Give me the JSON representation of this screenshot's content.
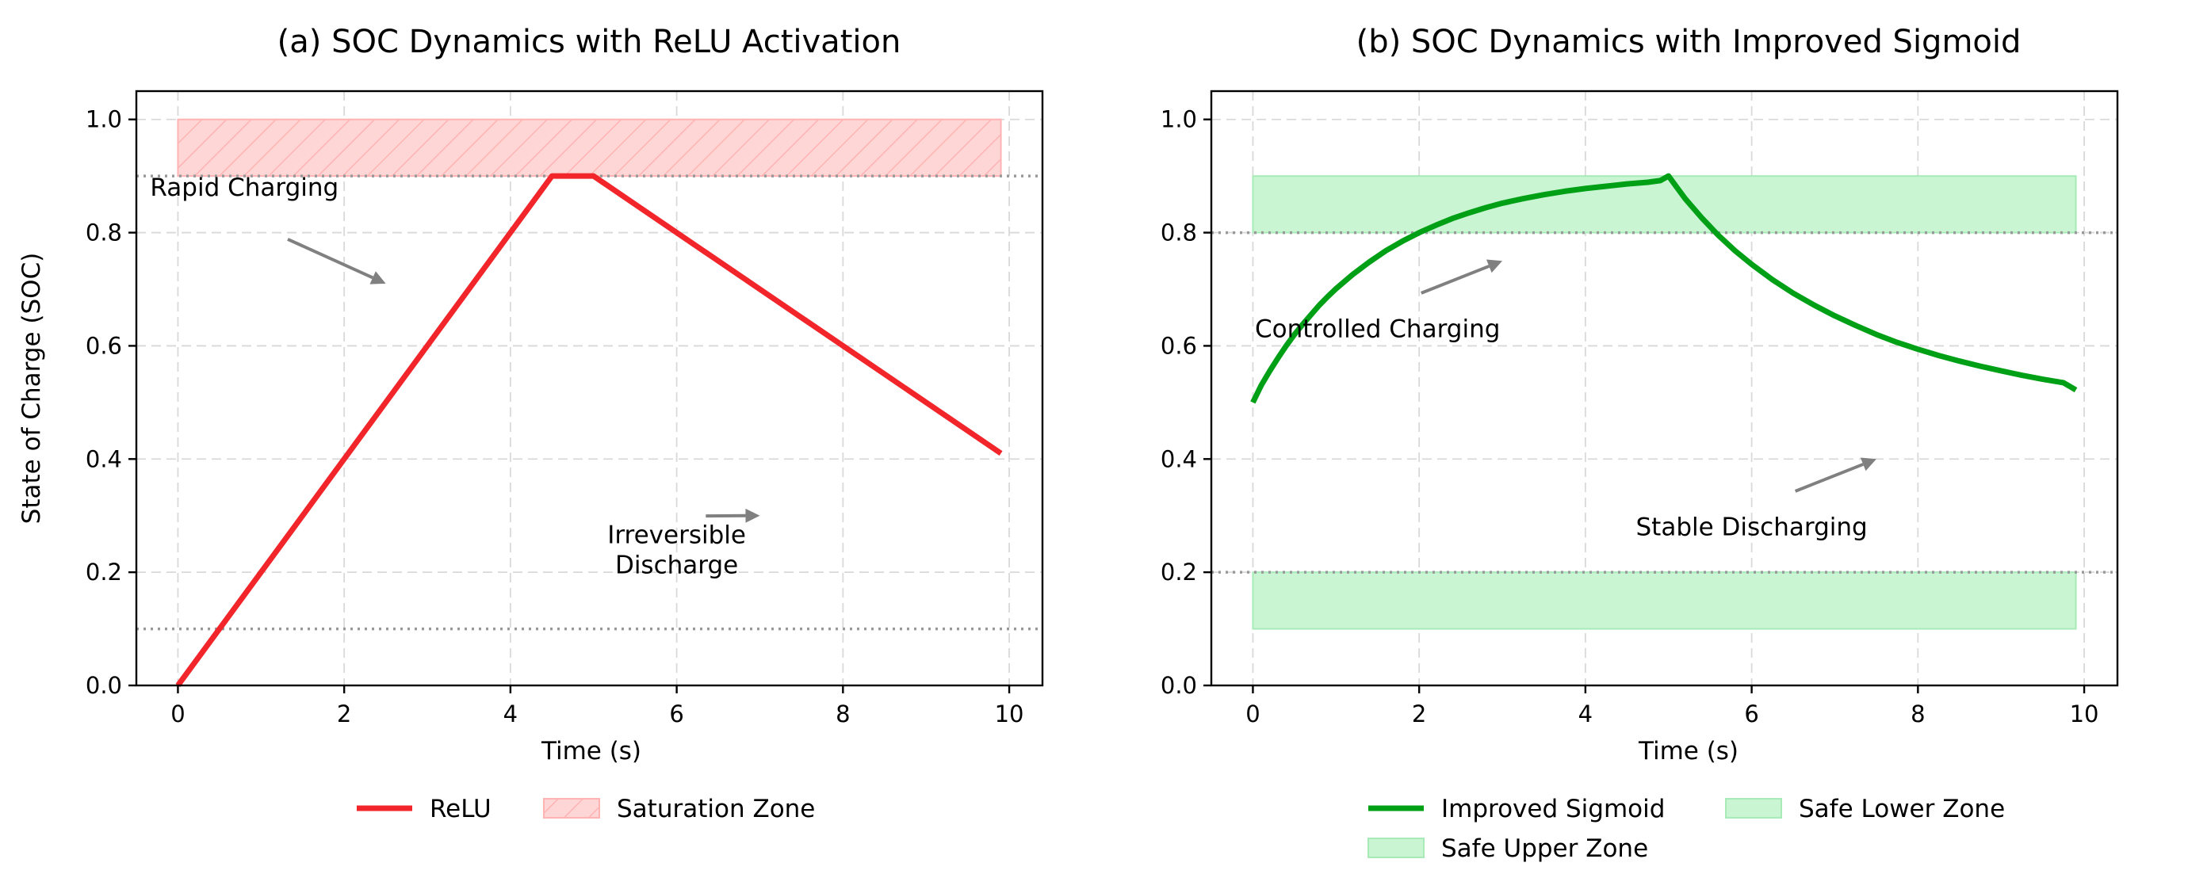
{
  "chart_data": [
    {
      "id": "a",
      "type": "line",
      "title": "(a) SOC Dynamics with ReLU Activation",
      "xlabel": "Time (s)",
      "ylabel": "State of Charge (SOC)",
      "xlim": [
        -0.5,
        10.4
      ],
      "ylim": [
        0.0,
        1.05
      ],
      "xticks": [
        0,
        2,
        4,
        6,
        8,
        10
      ],
      "yticks": [
        0.0,
        0.2,
        0.4,
        0.6,
        0.8,
        1.0
      ],
      "xtick_labels": [
        "0",
        "2",
        "4",
        "6",
        "8",
        "10"
      ],
      "ytick_labels": [
        "0.0",
        "0.2",
        "0.4",
        "0.6",
        "0.8",
        "1.0"
      ],
      "grid": true,
      "series": [
        {
          "name": "ReLU",
          "color": "#f2252a",
          "x": [
            0,
            4.5,
            5.0,
            9.9
          ],
          "y": [
            0.0,
            0.9,
            0.9,
            0.41
          ]
        }
      ],
      "regions": [
        {
          "name": "Saturation Zone",
          "x": [
            0,
            9.9
          ],
          "y": [
            0.9,
            1.0
          ],
          "fill": "#ffd6d6",
          "edge": "#ffb3b3",
          "hatch": true
        }
      ],
      "hlines": [
        {
          "y": 0.9,
          "color": "#999999"
        },
        {
          "y": 0.1,
          "color": "#999999"
        }
      ],
      "annotations": [
        {
          "lines": [
            "Rapid Charging"
          ],
          "text_at": [
            0.8,
            0.865
          ],
          "arrow_to": [
            2.5,
            0.71
          ]
        },
        {
          "lines": [
            "Irreversible",
            "Discharge"
          ],
          "text_at": [
            6.0,
            0.225
          ],
          "arrow_to": [
            7.0,
            0.3
          ]
        }
      ],
      "legend": [
        {
          "label": "ReLU",
          "kind": "line",
          "color": "#f2252a"
        },
        {
          "label": "Saturation Zone",
          "kind": "patch",
          "color": "#ffd6d6",
          "hatch": true
        }
      ]
    },
    {
      "id": "b",
      "type": "line",
      "title": "(b) SOC Dynamics with Improved Sigmoid",
      "xlabel": "Time (s)",
      "ylabel": "",
      "xlim": [
        -0.5,
        10.4
      ],
      "ylim": [
        0.0,
        1.05
      ],
      "xticks": [
        0,
        2,
        4,
        6,
        8,
        10
      ],
      "yticks": [
        0.0,
        0.2,
        0.4,
        0.6,
        0.8,
        1.0
      ],
      "xtick_labels": [
        "0",
        "2",
        "4",
        "6",
        "8",
        "10"
      ],
      "ytick_labels": [
        "0.0",
        "0.2",
        "0.4",
        "0.6",
        "0.8",
        "1.0"
      ],
      "grid": true,
      "series": [
        {
          "name": "Improved Sigmoid",
          "color": "#00a016",
          "x": [
            0.0,
            0.1,
            0.2,
            0.3,
            0.4,
            0.5,
            0.6,
            0.7,
            0.8,
            0.9,
            1.0,
            1.2,
            1.4,
            1.6,
            1.8,
            2.0,
            2.2,
            2.4,
            2.6,
            2.8,
            3.0,
            3.25,
            3.5,
            3.75,
            4.0,
            4.25,
            4.5,
            4.75,
            4.9,
            5.0,
            5.1,
            5.2,
            5.4,
            5.6,
            5.8,
            6.0,
            6.25,
            6.5,
            6.75,
            7.0,
            7.25,
            7.5,
            7.75,
            8.0,
            8.25,
            8.5,
            8.75,
            9.0,
            9.25,
            9.5,
            9.75,
            9.9
          ],
          "y": [
            0.5,
            0.53,
            0.555,
            0.578,
            0.6,
            0.62,
            0.638,
            0.655,
            0.672,
            0.687,
            0.701,
            0.726,
            0.748,
            0.768,
            0.785,
            0.8,
            0.813,
            0.825,
            0.835,
            0.844,
            0.852,
            0.86,
            0.867,
            0.873,
            0.878,
            0.882,
            0.886,
            0.889,
            0.892,
            0.9,
            0.88,
            0.86,
            0.826,
            0.795,
            0.768,
            0.744,
            0.717,
            0.693,
            0.672,
            0.653,
            0.636,
            0.62,
            0.606,
            0.594,
            0.583,
            0.573,
            0.564,
            0.556,
            0.548,
            0.541,
            0.535,
            0.522
          ]
        }
      ],
      "regions": [
        {
          "name": "Safe Upper Zone",
          "x": [
            0,
            9.9
          ],
          "y": [
            0.8,
            0.9
          ],
          "fill": "#c9f5d3",
          "edge": "#a8ebb8",
          "hatch": false
        },
        {
          "name": "Safe Lower Zone",
          "x": [
            0,
            9.9
          ],
          "y": [
            0.1,
            0.2
          ],
          "fill": "#c9f5d3",
          "edge": "#a8ebb8",
          "hatch": false
        }
      ],
      "hlines": [
        {
          "y": 0.8,
          "color": "#999999"
        },
        {
          "y": 0.2,
          "color": "#999999"
        }
      ],
      "annotations": [
        {
          "lines": [
            "Controlled Charging"
          ],
          "text_at": [
            1.5,
            0.615
          ],
          "arrow_to": [
            3.0,
            0.75
          ]
        },
        {
          "lines": [
            "Stable Discharging"
          ],
          "text_at": [
            6.0,
            0.265
          ],
          "arrow_to": [
            7.5,
            0.4
          ]
        }
      ],
      "legend": [
        {
          "label": "Improved Sigmoid",
          "kind": "line",
          "color": "#00a016"
        },
        {
          "label": "Safe Lower Zone",
          "kind": "patch",
          "color": "#c9f5d3"
        },
        {
          "label": "Safe Upper Zone",
          "kind": "patch",
          "color": "#c9f5d3"
        }
      ]
    }
  ]
}
